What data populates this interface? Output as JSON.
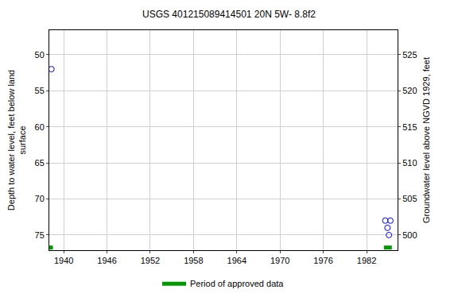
{
  "chart_data": {
    "type": "scatter",
    "title": "USGS 401215089414501 20N 5W- 8.8f2",
    "y_label": [
      "Depth to water level, feet below land",
      "surface"
    ],
    "y2_label": "Groundwater level above NGVD 1929, feet",
    "xlim": [
      1938.0,
      1986.3
    ],
    "xticks": [
      1940,
      1946,
      1952,
      1958,
      1964,
      1970,
      1976,
      1982
    ],
    "ylim": [
      77.1,
      46.6
    ],
    "yticks": [
      50,
      55,
      60,
      65,
      70,
      75
    ],
    "y2lim": [
      497.9,
      528.4
    ],
    "y2ticks": [
      500,
      505,
      510,
      515,
      520,
      525
    ],
    "grid": true,
    "legend": "bottom",
    "series": [
      {
        "type": "scatter",
        "marker": "circle-open",
        "color": "#0000ff",
        "x": [
          1938.3,
          1984.6,
          1984.9,
          1985.1,
          1985.3
        ],
        "values": [
          52.0,
          73.0,
          74.0,
          75.0,
          73.0
        ]
      },
      {
        "name": "Period of approved data",
        "type": "period",
        "color": "#009900",
        "periods": [
          [
            1938.0,
            1938.5
          ],
          [
            1984.4,
            1985.5
          ]
        ]
      }
    ]
  }
}
